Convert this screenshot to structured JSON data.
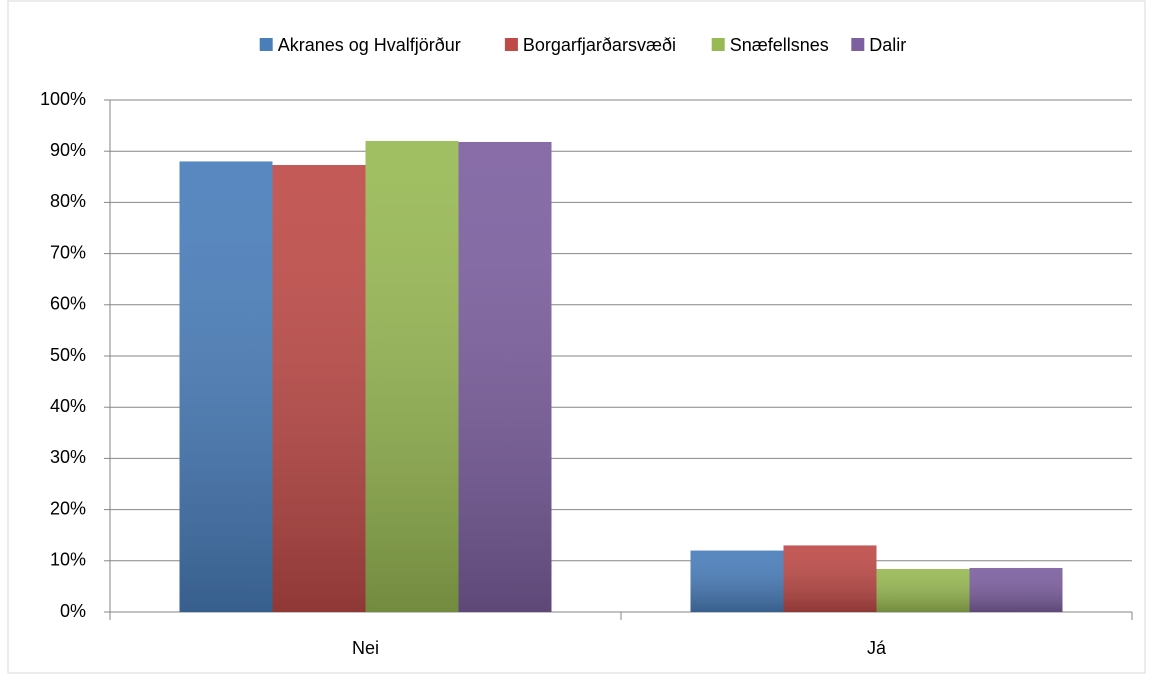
{
  "chart_data": {
    "type": "bar",
    "categories": [
      "Nei",
      "Já"
    ],
    "series": [
      {
        "name": "Akranes og Hvalfjörður",
        "color": "#4a7ebb",
        "values": [
          88,
          12
        ]
      },
      {
        "name": "Borgarfjarðarsvæði",
        "color": "#be4b48",
        "values": [
          87.3,
          13
        ]
      },
      {
        "name": "Snæfellsnes",
        "color": "#98b954",
        "values": [
          92,
          8.4
        ]
      },
      {
        "name": "Dalir",
        "color": "#7d60a0",
        "values": [
          91.8,
          8.6
        ]
      }
    ],
    "ylim": [
      0,
      100
    ],
    "yticks": [
      {
        "value": 0,
        "label": "0%"
      },
      {
        "value": 10,
        "label": "10%"
      },
      {
        "value": 20,
        "label": "20%"
      },
      {
        "value": 30,
        "label": "30%"
      },
      {
        "value": 40,
        "label": "40%"
      },
      {
        "value": 50,
        "label": "50%"
      },
      {
        "value": 60,
        "label": "60%"
      },
      {
        "value": 70,
        "label": "70%"
      },
      {
        "value": 80,
        "label": "80%"
      },
      {
        "value": 90,
        "label": "90%"
      },
      {
        "value": 100,
        "label": "100%"
      }
    ],
    "grid": true,
    "legend": "top"
  }
}
